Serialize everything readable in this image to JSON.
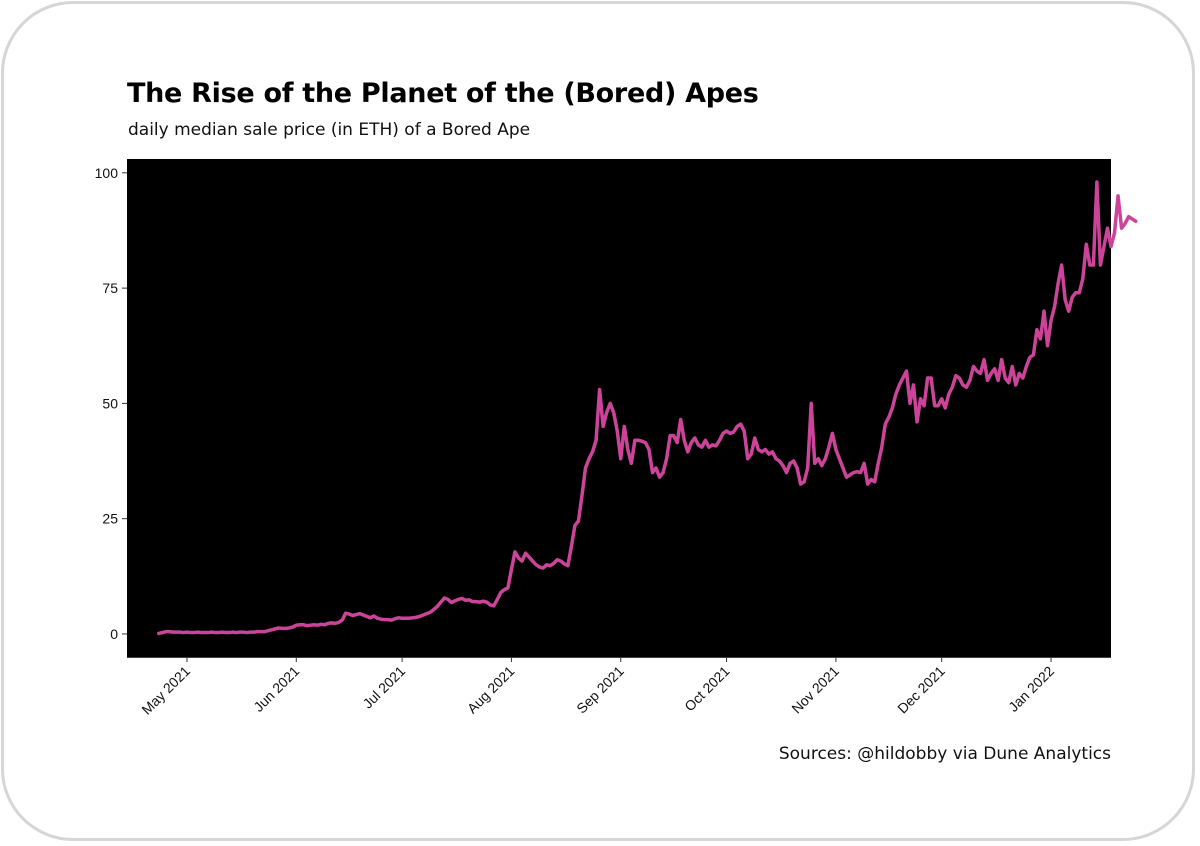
{
  "chart_data": {
    "type": "line",
    "title": "The Rise of the Planet of the (Bored) Apes",
    "subtitle": "daily median sale price (in ETH) of a Bored Ape",
    "caption": "Sources: @hildobby via Dune Analytics",
    "xlabel": "",
    "ylabel": "",
    "x_start": "2021-04-23",
    "x_range": [
      "2021-04-14",
      "2022-01-18"
    ],
    "ylim": [
      -5,
      103
    ],
    "yticks": [
      0,
      25,
      50,
      75,
      100
    ],
    "xticks": [
      {
        "date": "2021-05-01",
        "label": "May 2021"
      },
      {
        "date": "2021-06-01",
        "label": "Jun 2021"
      },
      {
        "date": "2021-07-01",
        "label": "Jul 2021"
      },
      {
        "date": "2021-08-01",
        "label": "Aug 2021"
      },
      {
        "date": "2021-09-01",
        "label": "Sep 2021"
      },
      {
        "date": "2021-10-01",
        "label": "Oct 2021"
      },
      {
        "date": "2021-11-01",
        "label": "Nov 2021"
      },
      {
        "date": "2021-12-01",
        "label": "Dec 2021"
      },
      {
        "date": "2022-01-01",
        "label": "Jan 2022"
      }
    ],
    "grid": false,
    "legend": "none",
    "panel_background": "#000000",
    "line_color": "#cc4499",
    "series": [
      {
        "values": [
          0.1,
          0.3,
          0.5,
          0.5,
          0.4,
          0.4,
          0.4,
          0.3,
          0.4,
          0.3,
          0.3,
          0.4,
          0.3,
          0.3,
          0.3,
          0.4,
          0.3,
          0.3,
          0.4,
          0.3,
          0.3,
          0.4,
          0.3,
          0.4,
          0.4,
          0.3,
          0.4,
          0.4,
          0.5,
          0.5,
          0.5,
          0.7,
          0.9,
          1.1,
          1.3,
          1.2,
          1.2,
          1.3,
          1.5,
          1.9,
          2.0,
          2.0,
          1.8,
          1.9,
          2.0,
          1.9,
          2.1,
          2.0,
          2.3,
          2.4,
          2.3,
          2.5,
          3.0,
          4.5,
          4.3,
          4.0,
          4.2,
          4.4,
          4.1,
          3.8,
          3.5,
          3.9,
          3.4,
          3.2,
          3.1,
          3.1,
          3.0,
          3.3,
          3.5,
          3.4,
          3.4,
          3.4,
          3.5,
          3.6,
          3.8,
          4.1,
          4.4,
          4.7,
          5.3,
          6.0,
          6.9,
          7.8,
          7.5,
          6.8,
          7.2,
          7.5,
          7.7,
          7.3,
          7.4,
          7.0,
          7.0,
          6.9,
          7.1,
          6.9,
          6.3,
          6.1,
          7.5,
          9.0,
          9.6,
          10.0,
          14.0,
          17.8,
          16.5,
          15.8,
          17.5,
          16.7,
          15.8,
          15.0,
          14.5,
          14.3,
          15.0,
          14.8,
          15.3,
          16.1,
          15.8,
          15.2,
          14.8,
          19.0,
          23.5,
          24.5,
          30.0,
          36.0,
          38.0,
          39.5,
          42.0,
          53.0,
          45.0,
          48.0,
          50.0,
          48.0,
          44.0,
          38.0,
          45.0,
          40.0,
          37.0,
          42.0,
          42.0,
          41.8,
          41.5,
          40.0,
          35.0,
          36.0,
          34.0,
          35.0,
          38.0,
          43.0,
          43.0,
          41.5,
          46.5,
          42.0,
          39.5,
          41.5,
          42.5,
          41.0,
          40.5,
          42.0,
          40.5,
          41.0,
          40.8,
          42.0,
          43.5,
          44.0,
          43.5,
          43.8,
          45.0,
          45.5,
          44.0,
          38.0,
          39.0,
          42.5,
          40.0,
          39.5,
          40.0,
          39.0,
          39.5,
          38.0,
          37.5,
          36.5,
          35.0,
          37.0,
          37.5,
          36.0,
          32.5,
          33.0,
          36.0,
          50.0,
          37.0,
          38.0,
          36.5,
          38.0,
          40.5,
          43.5,
          40.0,
          38.0,
          36.0,
          34.0,
          34.5,
          35.0,
          35.2,
          35.0,
          37.0,
          32.5,
          33.5,
          33.0,
          37.0,
          40.5,
          45.5,
          47.0,
          49.0,
          52.0,
          54.0,
          55.5,
          57.0,
          50.0,
          54.0,
          46.0,
          51.0,
          49.5,
          55.5,
          55.5,
          49.5,
          49.5,
          51.0,
          49.0,
          52.0,
          53.5,
          56.0,
          55.5,
          54.0,
          53.5,
          55.0,
          58.0,
          57.0,
          56.5,
          59.5,
          55.0,
          56.5,
          57.5,
          55.0,
          59.5,
          55.5,
          54.5,
          58.0,
          54.0,
          56.5,
          55.5,
          58.0,
          60.0,
          60.5,
          66.0,
          64.0,
          70.0,
          62.5,
          68.0,
          71.0,
          76.0,
          80.0,
          72.5,
          70.0,
          73.0,
          74.0,
          74.0,
          77.0,
          84.5,
          80.0,
          80.0,
          98.0,
          80.0,
          84.0,
          88.0,
          84.0,
          87.0,
          95.0,
          88.0,
          89.0,
          90.5,
          90.0,
          89.5
        ]
      }
    ]
  }
}
